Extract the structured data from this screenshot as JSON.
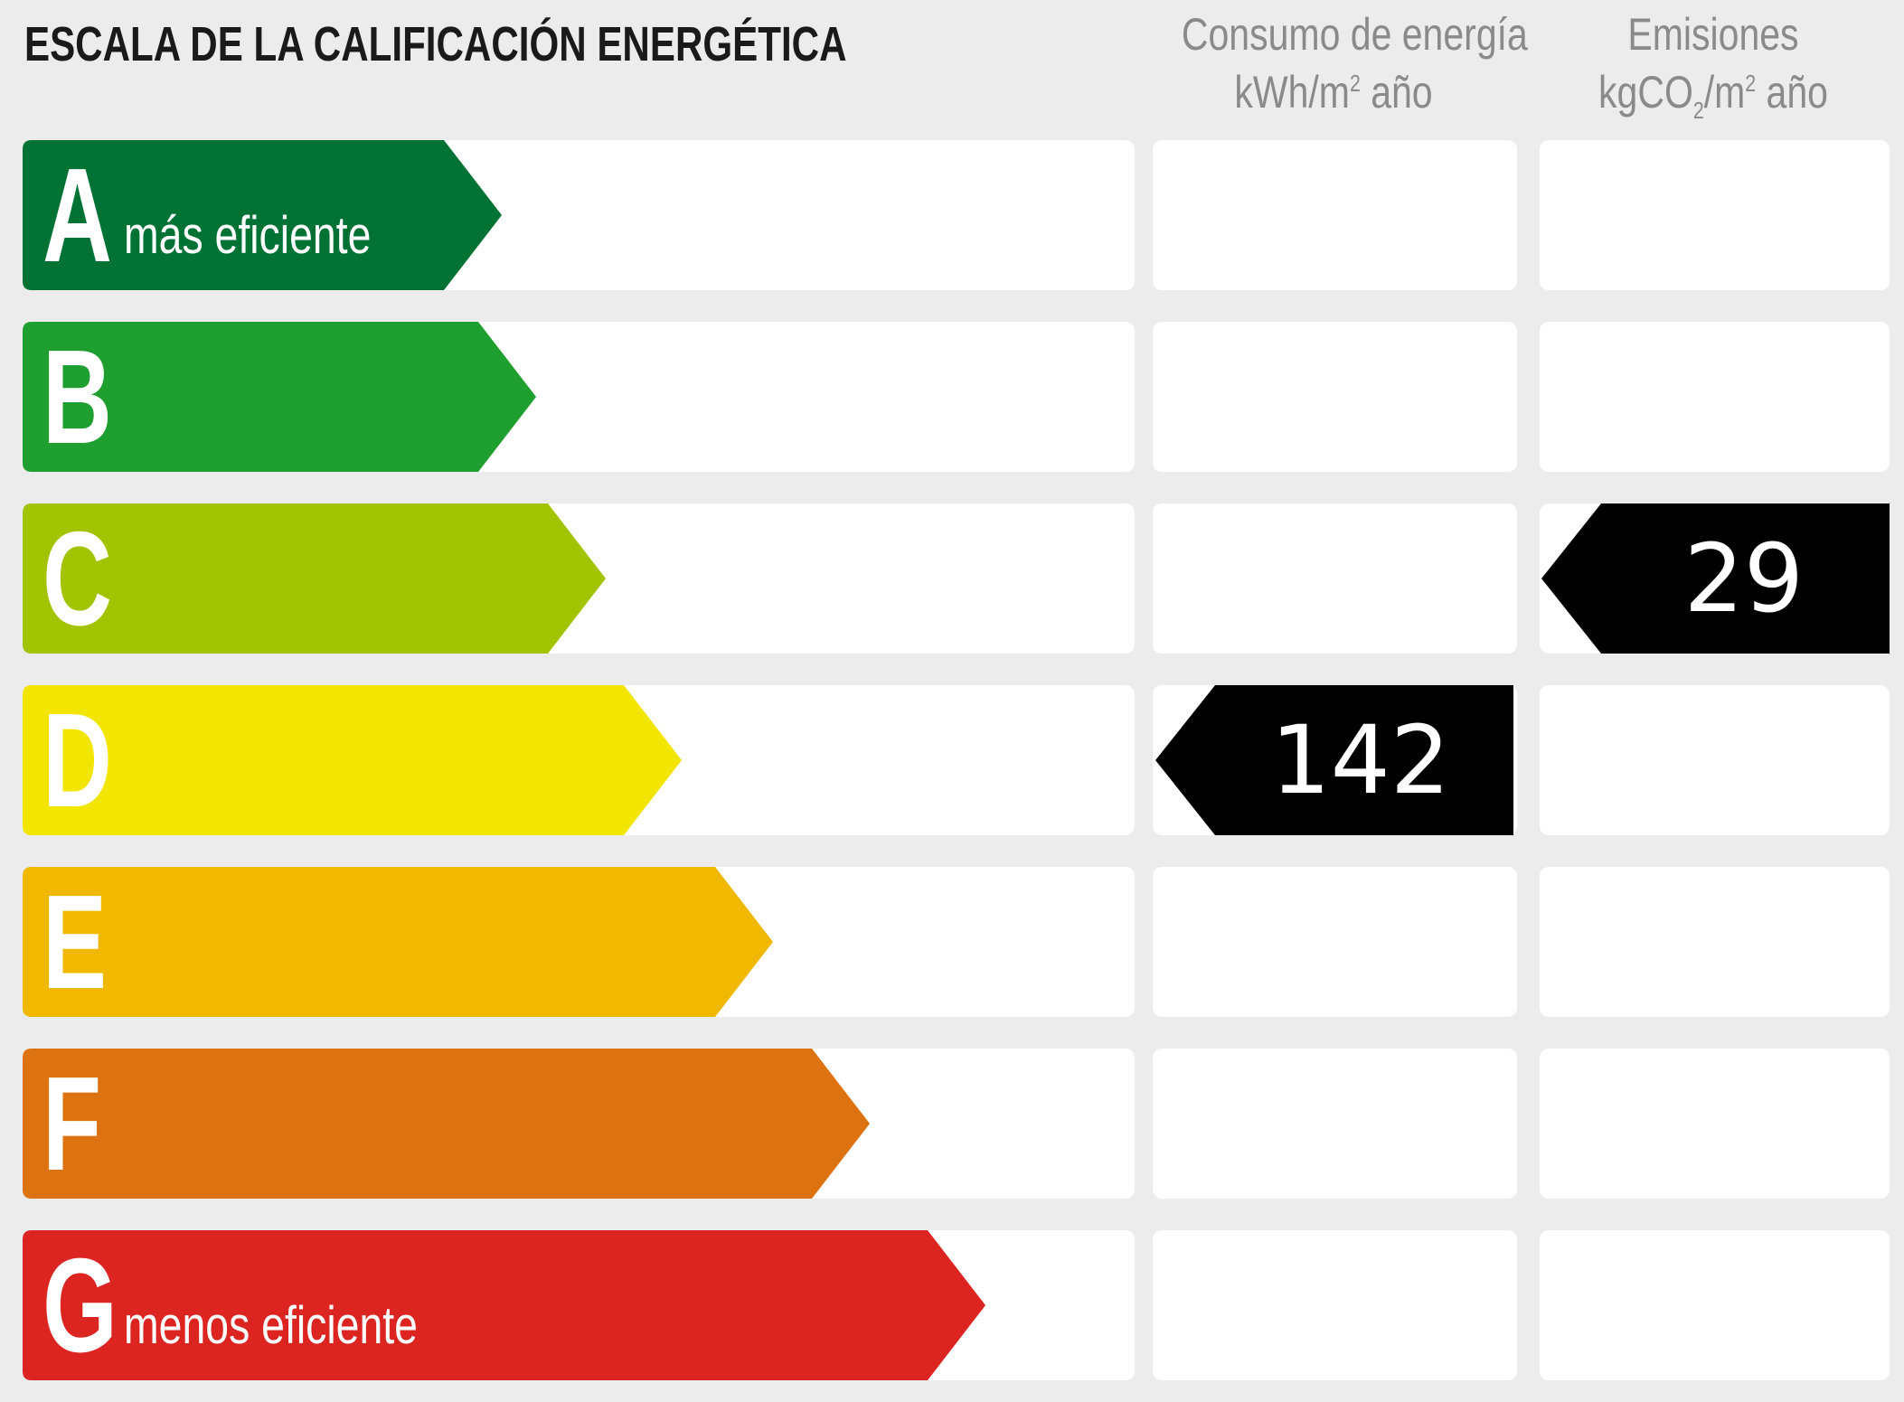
{
  "header": {
    "title": "ESCALA DE LA CALIFICACIÓN ENERGÉTICA",
    "consumption_label_line1": "Consumo de energía",
    "consumption_unit_pre": "kWh/m",
    "consumption_unit_sup": "2",
    "consumption_unit_post": " año",
    "emissions_label_line1": "Emisiones",
    "emissions_unit_pre": "kgCO",
    "emissions_unit_sub": "2",
    "emissions_unit_mid": "/m",
    "emissions_unit_sup": "2",
    "emissions_unit_post": " año"
  },
  "ratings": [
    {
      "letter": "A",
      "sublabel": "más eficiente",
      "color": "#007234"
    },
    {
      "letter": "B",
      "sublabel": "",
      "color": "#1f9f2f"
    },
    {
      "letter": "C",
      "sublabel": "",
      "color": "#a2c400"
    },
    {
      "letter": "D",
      "sublabel": "",
      "color": "#f2e500"
    },
    {
      "letter": "E",
      "sublabel": "",
      "color": "#f1b800"
    },
    {
      "letter": "F",
      "sublabel": "",
      "color": "#dd7210"
    },
    {
      "letter": "G",
      "sublabel": "menos eficiente",
      "color": "#dc2421"
    }
  ],
  "results": {
    "consumption": {
      "value": "142",
      "rating": "D",
      "color": "#000000"
    },
    "emissions": {
      "value": "29",
      "rating": "C",
      "color": "#000000"
    }
  },
  "chart_data": {
    "type": "table",
    "title": "ESCALA DE LA CALIFICACIÓN ENERGÉTICA",
    "categories": [
      "A",
      "B",
      "C",
      "D",
      "E",
      "F",
      "G"
    ],
    "category_notes": {
      "A": "más eficiente",
      "G": "menos eficiente"
    },
    "columns": [
      "Consumo de energía kWh/m² año",
      "Emisiones kgCO₂/m² año"
    ],
    "series": [
      {
        "name": "Consumo de energía (kWh/m² año)",
        "value": 142,
        "rating": "D"
      },
      {
        "name": "Emisiones (kgCO₂/m² año)",
        "value": 29,
        "rating": "C"
      }
    ]
  }
}
